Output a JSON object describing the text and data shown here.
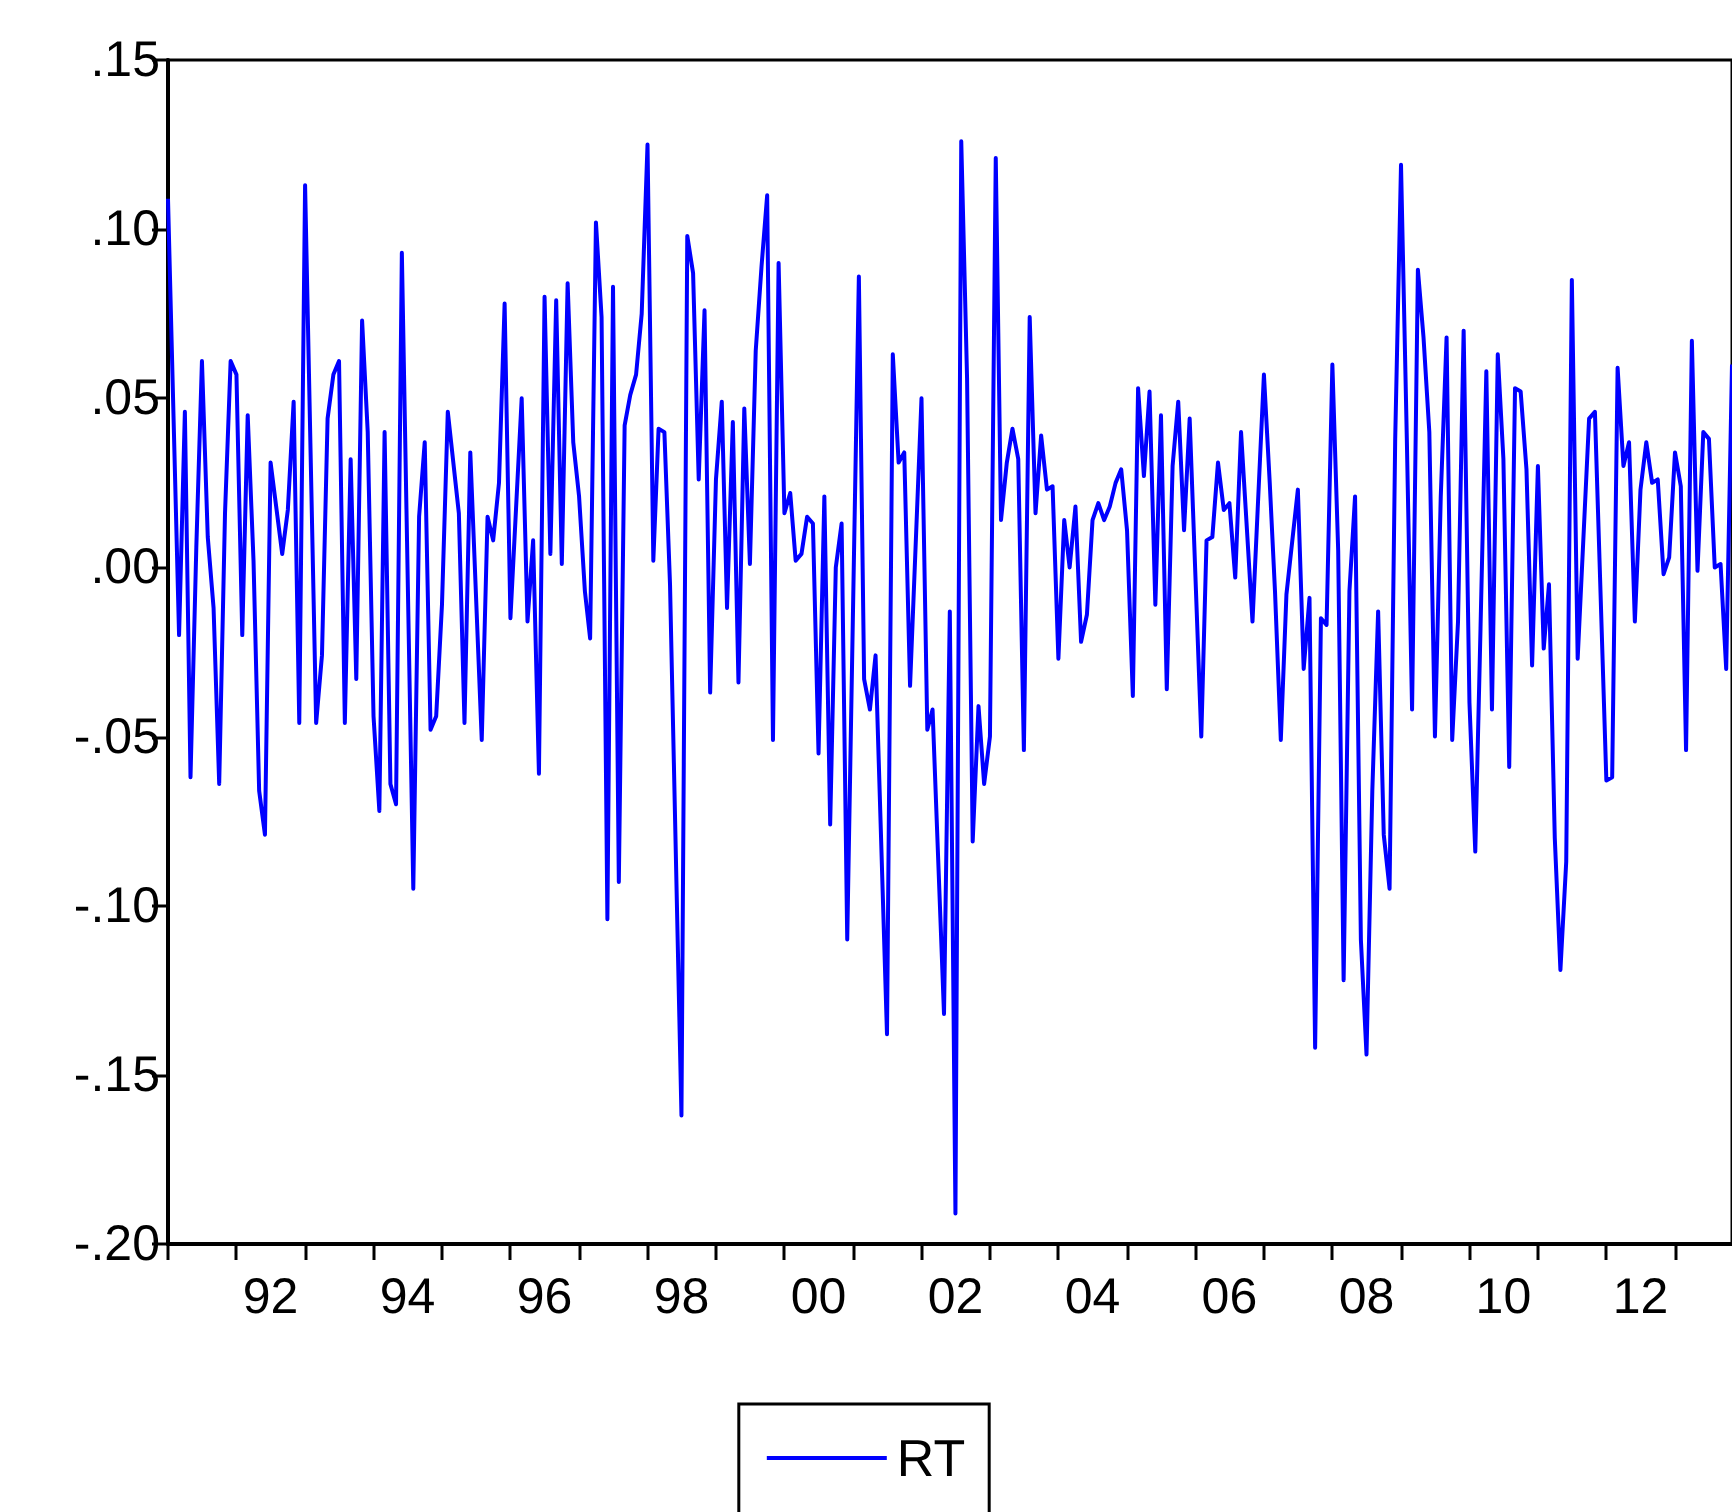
{
  "chart_data": {
    "type": "line",
    "legend": "bottom",
    "marker": "none",
    "line_style": "solid",
    "xlim": [
      "1991-01",
      "2013-11"
    ],
    "xticks": [
      {
        "value": "1991-01",
        "label": null
      },
      {
        "value": "1992-01",
        "label": null
      },
      {
        "value": "1992-07",
        "label": "92"
      },
      {
        "value": "1993-01",
        "label": null
      },
      {
        "value": "1994-01",
        "label": null
      },
      {
        "value": "1994-07",
        "label": "94"
      },
      {
        "value": "1995-01",
        "label": null
      },
      {
        "value": "1996-01",
        "label": null
      },
      {
        "value": "1996-07",
        "label": "96"
      },
      {
        "value": "1997-01",
        "label": null
      },
      {
        "value": "1998-01",
        "label": null
      },
      {
        "value": "1998-07",
        "label": "98"
      },
      {
        "value": "1999-01",
        "label": null
      },
      {
        "value": "2000-01",
        "label": null
      },
      {
        "value": "2000-07",
        "label": "00"
      },
      {
        "value": "2001-01",
        "label": null
      },
      {
        "value": "2002-01",
        "label": null
      },
      {
        "value": "2002-07",
        "label": "02"
      },
      {
        "value": "2003-01",
        "label": null
      },
      {
        "value": "2004-01",
        "label": null
      },
      {
        "value": "2004-07",
        "label": "04"
      },
      {
        "value": "2005-01",
        "label": null
      },
      {
        "value": "2006-01",
        "label": null
      },
      {
        "value": "2006-07",
        "label": "06"
      },
      {
        "value": "2007-01",
        "label": null
      },
      {
        "value": "2008-01",
        "label": null
      },
      {
        "value": "2008-07",
        "label": "08"
      },
      {
        "value": "2009-01",
        "label": null
      },
      {
        "value": "2010-01",
        "label": null
      },
      {
        "value": "2010-07",
        "label": "10"
      },
      {
        "value": "2011-01",
        "label": null
      },
      {
        "value": "2012-01",
        "label": null
      },
      {
        "value": "2012-07",
        "label": "12"
      },
      {
        "value": "2013-01",
        "label": null
      }
    ],
    "ylim": [
      -0.2,
      0.15
    ],
    "yticks": [
      {
        "value": -0.2,
        "label": "-.20"
      },
      {
        "value": -0.15,
        "label": "-.15"
      },
      {
        "value": -0.1,
        "label": "-.10"
      },
      {
        "value": -0.05,
        "label": "-.05"
      },
      {
        "value": 0,
        "label": ".00"
      },
      {
        "value": 0.05,
        "label": ".05"
      },
      {
        "value": 0.1,
        "label": ".10"
      },
      {
        "value": 0.15,
        "label": ".15"
      }
    ],
    "series": [
      {
        "name": "RT",
        "color": "#0000ff",
        "x": [
          "1991-01",
          "1991-03",
          "1991-04",
          "1991-05",
          "1991-06",
          "1991-07",
          "1991-08",
          "1991-09",
          "1991-10",
          "1991-11",
          "1991-12",
          "1992-01",
          "1992-02",
          "1992-03",
          "1992-04",
          "1992-05",
          "1992-06",
          "1992-07",
          "1992-09",
          "1992-10",
          "1992-11",
          "1992-12",
          "1993-01",
          "1993-03",
          "1993-04",
          "1993-05",
          "1993-06",
          "1993-07",
          "1993-08",
          "1993-09",
          "1993-10",
          "1993-11",
          "1993-12",
          "1994-01",
          "1994-02",
          "1994-03",
          "1994-04",
          "1994-05",
          "1994-06",
          "1994-08",
          "1994-09",
          "1994-10",
          "1994-11",
          "1994-12",
          "1995-01",
          "1995-02",
          "1995-04",
          "1995-05",
          "1995-06",
          "1995-08",
          "1995-09",
          "1995-10",
          "1995-11",
          "1995-12",
          "1996-01",
          "1996-03",
          "1996-04",
          "1996-05",
          "1996-06",
          "1996-07",
          "1996-08",
          "1996-09",
          "1996-10",
          "1996-11",
          "1996-12",
          "1997-01",
          "1997-02",
          "1997-03",
          "1997-04",
          "1997-05",
          "1997-06",
          "1997-07",
          "1997-08",
          "1997-09",
          "1997-10",
          "1997-11",
          "1997-12",
          "1998-01",
          "1998-02",
          "1998-03",
          "1998-04",
          "1998-05",
          "1998-07",
          "1998-08",
          "1998-09",
          "1998-10",
          "1998-11",
          "1998-12",
          "1999-01",
          "1999-02",
          "1999-03",
          "1999-04",
          "1999-05",
          "1999-06",
          "1999-07",
          "1999-08",
          "1999-09",
          "1999-10",
          "1999-11",
          "1999-12",
          "2000-01",
          "2000-02",
          "2000-03",
          "2000-04",
          "2000-05",
          "2000-06",
          "2000-07",
          "2000-08",
          "2000-09",
          "2000-10",
          "2000-11",
          "2000-12",
          "2001-02",
          "2001-03",
          "2001-04",
          "2001-05",
          "2001-07",
          "2001-08",
          "2001-09",
          "2001-10",
          "2001-11",
          "2002-01",
          "2002-02",
          "2002-03",
          "2002-05",
          "2002-06",
          "2002-07",
          "2002-08",
          "2002-09",
          "2002-10",
          "2002-11",
          "2002-12",
          "2003-01",
          "2003-02",
          "2003-03",
          "2003-04",
          "2003-05",
          "2003-06",
          "2003-07",
          "2003-08",
          "2003-09",
          "2003-10",
          "2003-11",
          "2003-12",
          "2004-01",
          "2004-02",
          "2004-03",
          "2004-04",
          "2004-05",
          "2004-06",
          "2004-07",
          "2004-08",
          "2004-09",
          "2004-10",
          "2004-11",
          "2004-12",
          "2005-01",
          "2005-02",
          "2005-03",
          "2005-04",
          "2005-05",
          "2005-06",
          "2005-07",
          "2005-08",
          "2005-09",
          "2005-10",
          "2005-11",
          "2005-12",
          "2006-02",
          "2006-03",
          "2006-04",
          "2006-05",
          "2006-06",
          "2006-07",
          "2006-08",
          "2006-09",
          "2006-11",
          "2007-01",
          "2007-02",
          "2007-03",
          "2007-04",
          "2007-05",
          "2007-07",
          "2007-08",
          "2007-09",
          "2007-10",
          "2007-11",
          "2007-12",
          "2008-01",
          "2008-02",
          "2008-03",
          "2008-04",
          "2008-05",
          "2008-06",
          "2008-07",
          "2008-08",
          "2008-09",
          "2008-10",
          "2008-11",
          "2008-12",
          "2009-01",
          "2009-02",
          "2009-03",
          "2009-04",
          "2009-05",
          "2009-06",
          "2009-07",
          "2009-08",
          "2009-09",
          "2009-10",
          "2009-11",
          "2009-12",
          "2010-01",
          "2010-02",
          "2010-03",
          "2010-04",
          "2010-05",
          "2010-06",
          "2010-07",
          "2010-08",
          "2010-09",
          "2010-10",
          "2010-11",
          "2010-12",
          "2011-01",
          "2011-02",
          "2011-03",
          "2011-04",
          "2011-05",
          "2011-06",
          "2011-07",
          "2011-08",
          "2011-10",
          "2011-11",
          "2012-01",
          "2012-02",
          "2012-03",
          "2012-04",
          "2012-05",
          "2012-06",
          "2012-07",
          "2012-08",
          "2012-09",
          "2012-10",
          "2012-11",
          "2012-12",
          "2013-01",
          "2013-02",
          "2013-03",
          "2013-04",
          "2013-05",
          "2013-06",
          "2013-07",
          "2013-08",
          "2013-09",
          "2013-10",
          "2013-11"
        ],
        "values": [
          0.109,
          -0.02,
          0.046,
          -0.062,
          0.006,
          0.061,
          0.009,
          -0.012,
          -0.064,
          0.016,
          0.061,
          0.057,
          -0.02,
          0.045,
          0.002,
          -0.066,
          -0.079,
          0.031,
          0.004,
          0.017,
          0.049,
          -0.046,
          0.113,
          -0.046,
          -0.026,
          0.044,
          0.057,
          0.061,
          -0.046,
          0.032,
          -0.033,
          0.073,
          0.04,
          -0.044,
          -0.072,
          0.04,
          -0.064,
          -0.07,
          0.093,
          -0.095,
          0.015,
          0.037,
          -0.048,
          -0.044,
          -0.011,
          0.046,
          0.016,
          -0.046,
          0.034,
          -0.051,
          0.015,
          0.008,
          0.025,
          0.078,
          -0.015,
          0.05,
          -0.016,
          0.008,
          -0.061,
          0.08,
          0.004,
          0.079,
          0.001,
          0.084,
          0.037,
          0.021,
          -0.007,
          -0.021,
          0.102,
          0.074,
          -0.104,
          0.083,
          -0.093,
          0.042,
          0.051,
          0.057,
          0.075,
          0.125,
          0.002,
          0.041,
          0.04,
          -0.005,
          -0.162,
          0.098,
          0.087,
          0.026,
          0.076,
          -0.037,
          0.026,
          0.049,
          -0.012,
          0.043,
          -0.034,
          0.047,
          0.001,
          0.064,
          0.089,
          0.11,
          -0.051,
          0.09,
          0.016,
          0.022,
          0.002,
          0.004,
          0.015,
          0.013,
          -0.055,
          0.021,
          -0.076,
          0.0,
          0.013,
          -0.11,
          0.086,
          -0.033,
          -0.042,
          -0.026,
          -0.138,
          0.063,
          0.031,
          0.034,
          -0.035,
          0.05,
          -0.048,
          -0.042,
          -0.132,
          -0.013,
          -0.191,
          0.126,
          0.056,
          -0.081,
          -0.041,
          -0.064,
          -0.05,
          0.121,
          0.014,
          0.031,
          0.041,
          0.032,
          -0.054,
          0.074,
          0.016,
          0.039,
          0.023,
          0.024,
          -0.027,
          0.014,
          0.0,
          0.018,
          -0.022,
          -0.014,
          0.014,
          0.019,
          0.014,
          0.018,
          0.025,
          0.029,
          0.011,
          -0.038,
          0.053,
          0.027,
          0.052,
          -0.011,
          0.045,
          -0.036,
          0.03,
          0.049,
          0.011,
          0.044,
          -0.05,
          0.008,
          0.009,
          0.031,
          0.017,
          0.019,
          -0.003,
          0.04,
          -0.016,
          0.057,
          0.025,
          -0.007,
          -0.051,
          -0.008,
          0.023,
          -0.03,
          -0.009,
          -0.142,
          -0.015,
          -0.017,
          0.06,
          0.005,
          -0.122,
          -0.007,
          0.021,
          -0.11,
          -0.144,
          -0.066,
          -0.013,
          -0.079,
          -0.095,
          0.038,
          0.119,
          0.038,
          -0.042,
          0.088,
          0.068,
          0.04,
          -0.05,
          0.021,
          0.068,
          -0.051,
          -0.016,
          0.07,
          -0.04,
          -0.084,
          -0.018,
          0.058,
          -0.042,
          0.063,
          0.032,
          -0.059,
          0.053,
          0.052,
          0.029,
          -0.029,
          0.03,
          -0.024,
          -0.005,
          -0.08,
          -0.119,
          -0.087,
          0.085,
          -0.027,
          0.044,
          0.046,
          -0.063,
          -0.062,
          0.059,
          0.03,
          0.037,
          -0.016,
          0.023,
          0.037,
          0.025,
          0.026,
          -0.002,
          0.003,
          0.034,
          0.024,
          -0.054,
          0.067,
          -0.001,
          0.04,
          0.038,
          0.0,
          0.001,
          -0.03,
          0.06
        ]
      }
    ]
  }
}
